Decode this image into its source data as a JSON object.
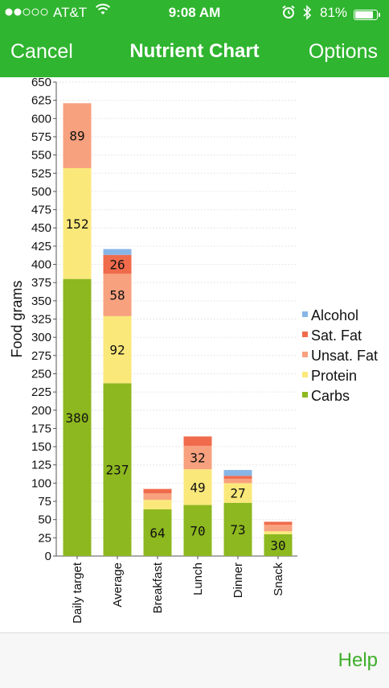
{
  "status": {
    "carrier": "AT&T",
    "time": "9:08 AM",
    "battery": "81%",
    "signal_dots": 5,
    "signal_filled": 2,
    "wifi_icon": "wifi-icon",
    "alarm_icon": "alarm-icon",
    "bluetooth_icon": "bluetooth-icon"
  },
  "nav": {
    "cancel_label": "Cancel",
    "title": "Nutrient Chart",
    "options_label": "Options"
  },
  "footer": {
    "help_label": "Help"
  },
  "colors": {
    "header_green": "#2fb52f",
    "help_green": "#3fae2a",
    "Carbs": "#8db81f",
    "Protein": "#fbe87a",
    "Unsat. Fat": "#f8a17e",
    "Sat. Fat": "#f06b4c",
    "Alcohol": "#87b5e6"
  },
  "chart_data": {
    "type": "bar",
    "stacked": true,
    "ylabel": "Food grams",
    "ylim": [
      0,
      650
    ],
    "ytick_step": 25,
    "grid": true,
    "legend_position": "right",
    "categories": [
      "Daily target",
      "Average",
      "Breakfast",
      "Lunch",
      "Dinner",
      "Snack"
    ],
    "series": [
      {
        "name": "Carbs",
        "values": [
          380,
          237,
          64,
          70,
          73,
          30
        ],
        "labels": [
          "380",
          "237",
          "64",
          "70",
          "73",
          "30"
        ]
      },
      {
        "name": "Protein",
        "values": [
          152,
          92,
          13,
          49,
          27,
          4
        ],
        "labels": [
          "152",
          "92",
          "",
          "49",
          "27",
          ""
        ]
      },
      {
        "name": "Unsat. Fat",
        "values": [
          89,
          58,
          9,
          32,
          6,
          9
        ],
        "labels": [
          "89",
          "58",
          "",
          "32",
          "",
          ""
        ]
      },
      {
        "name": "Sat. Fat",
        "values": [
          0,
          26,
          6,
          13,
          4,
          4
        ],
        "labels": [
          "",
          "26",
          "",
          "",
          "",
          ""
        ]
      },
      {
        "name": "Alcohol",
        "values": [
          0,
          8,
          0,
          0,
          8,
          0
        ],
        "labels": [
          "",
          "",
          "",
          "",
          "",
          ""
        ]
      }
    ],
    "legend_order": [
      "Alcohol",
      "Sat. Fat",
      "Unsat. Fat",
      "Protein",
      "Carbs"
    ]
  }
}
